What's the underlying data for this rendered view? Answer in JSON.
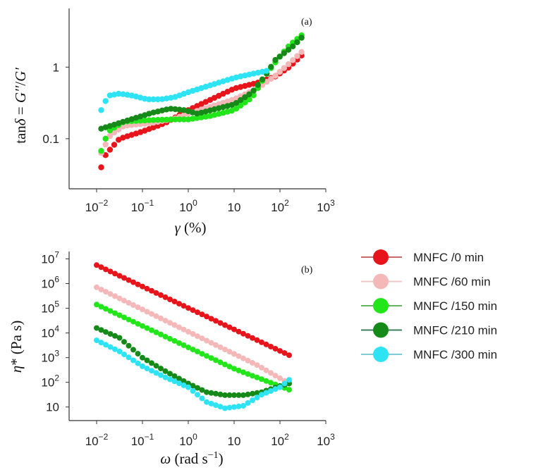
{
  "chart_data": [
    {
      "type": "scatter",
      "panel_label": "(a)",
      "xlabel_sym": "γ",
      "xlabel_unit": " (%)",
      "ylabel_a": "tan",
      "ylabel_b": "δ",
      "ylabel_c": " = ",
      "ylabel_d": "G′′",
      "ylabel_e": "/",
      "ylabel_f": "G′",
      "x_log_range": [
        -2.6,
        3.0
      ],
      "y_log_range": [
        -1.7,
        0.82
      ],
      "x_ticks": [
        {
          "b": "10",
          "e": "−2",
          "v": -2
        },
        {
          "b": "10",
          "e": "−1",
          "v": -1
        },
        {
          "b": "10",
          "e": "0",
          "v": 0
        },
        {
          "b": "10",
          "e": "",
          "v": 1
        },
        {
          "b": "10",
          "e": "2",
          "v": 2
        },
        {
          "b": "10",
          "e": "3",
          "v": 3
        }
      ],
      "y_ticks": [
        {
          "b": "0.1",
          "e": "",
          "v": -1
        },
        {
          "b": "1",
          "e": "",
          "v": 0
        }
      ],
      "series": [
        {
          "name": "MNFC /0 min",
          "knots": [
            [
              -1.9,
              -1.4
            ],
            [
              -1.8,
              -1.22
            ],
            [
              -1.5,
              -1.0
            ],
            [
              -1.0,
              -0.9
            ],
            [
              -0.5,
              -0.78
            ],
            [
              0.0,
              -0.6
            ],
            [
              0.5,
              -0.45
            ],
            [
              1.0,
              -0.3
            ],
            [
              1.5,
              -0.22
            ],
            [
              1.9,
              -0.13
            ],
            [
              2.2,
              0.0
            ],
            [
              2.5,
              0.18
            ]
          ]
        },
        {
          "name": "MNFC /60 min",
          "knots": [
            [
              -1.9,
              -1.2
            ],
            [
              -1.7,
              -0.95
            ],
            [
              -1.4,
              -0.82
            ],
            [
              -0.8,
              -0.78
            ],
            [
              -0.3,
              -0.72
            ],
            [
              0.0,
              -0.65
            ],
            [
              0.5,
              -0.55
            ],
            [
              1.0,
              -0.45
            ],
            [
              1.5,
              -0.3
            ],
            [
              1.9,
              -0.12
            ],
            [
              2.2,
              0.05
            ],
            [
              2.5,
              0.23
            ]
          ]
        },
        {
          "name": "MNFC /150 min",
          "knots": [
            [
              -1.9,
              -1.17
            ],
            [
              -1.75,
              -0.9
            ],
            [
              -1.4,
              -0.76
            ],
            [
              -0.8,
              -0.74
            ],
            [
              -0.3,
              -0.73
            ],
            [
              0.0,
              -0.73
            ],
            [
              0.5,
              -0.68
            ],
            [
              1.0,
              -0.6
            ],
            [
              1.4,
              -0.42
            ],
            [
              1.7,
              -0.1
            ],
            [
              2.0,
              0.15
            ],
            [
              2.2,
              0.3
            ],
            [
              2.5,
              0.46
            ]
          ]
        },
        {
          "name": "MNFC /210 min",
          "knots": [
            [
              -1.9,
              -0.86
            ],
            [
              -1.6,
              -0.8
            ],
            [
              -1.2,
              -0.72
            ],
            [
              -0.8,
              -0.64
            ],
            [
              -0.4,
              -0.58
            ],
            [
              -0.1,
              -0.6
            ],
            [
              0.2,
              -0.65
            ],
            [
              0.5,
              -0.6
            ],
            [
              1.0,
              -0.52
            ],
            [
              1.4,
              -0.35
            ],
            [
              1.7,
              -0.1
            ],
            [
              1.9,
              0.1
            ],
            [
              2.1,
              0.2
            ],
            [
              2.3,
              0.3
            ],
            [
              2.5,
              0.43
            ]
          ]
        },
        {
          "name": "MNFC /300 min",
          "knots": [
            [
              -1.9,
              -0.6
            ],
            [
              -1.75,
              -0.4
            ],
            [
              -1.5,
              -0.37
            ],
            [
              -1.2,
              -0.4
            ],
            [
              -0.9,
              -0.45
            ],
            [
              -0.6,
              -0.45
            ],
            [
              -0.3,
              -0.42
            ],
            [
              0.0,
              -0.35
            ],
            [
              0.5,
              -0.25
            ],
            [
              1.0,
              -0.15
            ],
            [
              1.5,
              -0.08
            ],
            [
              1.8,
              -0.04
            ]
          ]
        }
      ]
    },
    {
      "type": "scatter",
      "panel_label": "(b)",
      "xlabel_sym": "ω",
      "xlabel_unit": " (rad s",
      "xlabel_exp": "−1",
      "xlabel_close": ")",
      "ylabel_a": "η",
      "ylabel_b": "*",
      "ylabel_c": " (Pa s)",
      "x_log_range": [
        -2.6,
        3.0
      ],
      "y_log_range": [
        0.45,
        7.3
      ],
      "x_ticks": [
        {
          "b": "10",
          "e": "−2",
          "v": -2
        },
        {
          "b": "10",
          "e": "−1",
          "v": -1
        },
        {
          "b": "10",
          "e": "0",
          "v": 0
        },
        {
          "b": "10",
          "e": "",
          "v": 1
        },
        {
          "b": "10",
          "e": "2",
          "v": 2
        },
        {
          "b": "10",
          "e": "3",
          "v": 3
        }
      ],
      "y_ticks": [
        {
          "b": "10",
          "e": "",
          "v": 1
        },
        {
          "b": "10",
          "e": "2",
          "v": 2
        },
        {
          "b": "10",
          "e": "3",
          "v": 3
        },
        {
          "b": "10",
          "e": "4",
          "v": 4
        },
        {
          "b": "10",
          "e": "5",
          "v": 5
        },
        {
          "b": "10",
          "e": "6",
          "v": 6
        },
        {
          "b": "10",
          "e": "7",
          "v": 7
        }
      ],
      "series": [
        {
          "name": "MNFC /0 min",
          "knots": [
            [
              -2.0,
              6.75
            ],
            [
              2.2,
              3.1
            ]
          ]
        },
        {
          "name": "MNFC /60 min",
          "knots": [
            [
              -2.0,
              5.85
            ],
            [
              1.5,
              2.7
            ],
            [
              2.2,
              1.95
            ]
          ]
        },
        {
          "name": "MNFC /150 min",
          "knots": [
            [
              -2.0,
              5.15
            ],
            [
              1.0,
              2.55
            ],
            [
              2.2,
              1.7
            ]
          ]
        },
        {
          "name": "MNFC /210 min",
          "knots": [
            [
              -2.0,
              4.2
            ],
            [
              -1.5,
              3.8
            ],
            [
              -1.0,
              3.0
            ],
            [
              -0.5,
              2.45
            ],
            [
              0.0,
              1.95
            ],
            [
              0.4,
              1.6
            ],
            [
              0.8,
              1.48
            ],
            [
              1.2,
              1.48
            ],
            [
              1.6,
              1.6
            ],
            [
              2.0,
              1.85
            ],
            [
              2.2,
              1.95
            ]
          ]
        },
        {
          "name": "MNFC /300 min",
          "knots": [
            [
              -2.0,
              3.7
            ],
            [
              -1.5,
              3.25
            ],
            [
              -1.0,
              2.65
            ],
            [
              -0.5,
              2.2
            ],
            [
              0.0,
              1.8
            ],
            [
              0.4,
              1.2
            ],
            [
              0.8,
              0.95
            ],
            [
              1.2,
              1.05
            ],
            [
              1.6,
              1.5
            ],
            [
              2.0,
              1.8
            ],
            [
              2.2,
              2.1
            ]
          ]
        }
      ]
    }
  ],
  "legend": [
    {
      "label": "MNFC /0 min",
      "color": "#e8141b",
      "line": "#c96a6a"
    },
    {
      "label": "MNFC /60 min",
      "color": "#f4b8b8",
      "line": "#efc6c6"
    },
    {
      "label": "MNFC /150 min",
      "color": "#22e61a",
      "line": "#62b562"
    },
    {
      "label": "MNFC /210 min",
      "color": "#168a18",
      "line": "#3f7f5e"
    },
    {
      "label": "MNFC /300 min",
      "color": "#2ee4f4",
      "line": "#7ccbd6"
    }
  ]
}
